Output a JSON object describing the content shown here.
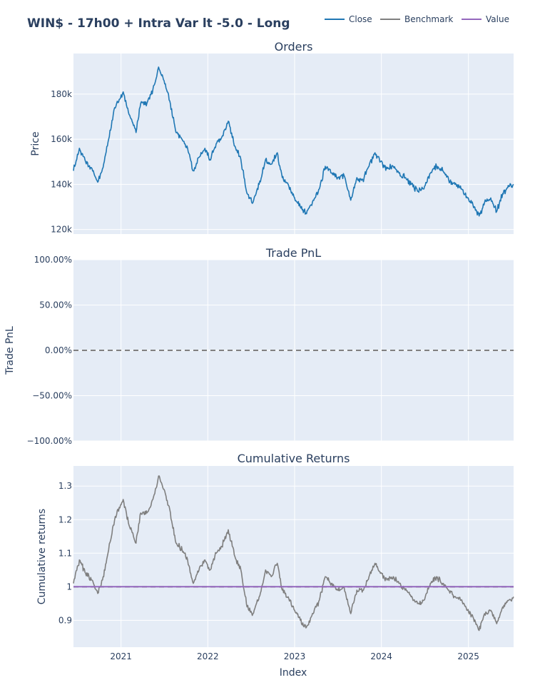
{
  "chart_data": {
    "title": "WIN$ - 17h00 + Intra Var lt -5.0 - Long",
    "legend": {
      "placement": "top-right",
      "entries": [
        {
          "name": "Close",
          "color": "#1f77b4"
        },
        {
          "name": "Benchmark",
          "color": "#7f7f7f"
        },
        {
          "name": "Value",
          "color": "#9467bd"
        }
      ]
    },
    "xlabel": "Index",
    "x_range": [
      "2020-06-15",
      "2025-07-10"
    ],
    "x_ticks": [
      "2021",
      "2022",
      "2023",
      "2024",
      "2025"
    ],
    "panels": [
      {
        "type": "line",
        "title": "Orders",
        "ylabel": "Price",
        "ylim": [
          118000,
          198000
        ],
        "y_ticks": [
          120000,
          140000,
          160000,
          180000
        ],
        "y_tick_labels": [
          "120k",
          "140k",
          "160k",
          "180k"
        ],
        "grid": true,
        "series": [
          {
            "name": "Close",
            "color": "#1f77b4",
            "x": [
              "2020-06-15",
              "2020-07-10",
              "2020-08-05",
              "2020-09-01",
              "2020-09-25",
              "2020-10-15",
              "2020-11-10",
              "2020-12-05",
              "2021-01-10",
              "2021-02-01",
              "2021-03-05",
              "2021-03-25",
              "2021-04-20",
              "2021-05-15",
              "2021-06-08",
              "2021-07-01",
              "2021-07-25",
              "2021-08-20",
              "2021-09-15",
              "2021-10-08",
              "2021-11-01",
              "2021-11-25",
              "2021-12-20",
              "2022-01-10",
              "2022-02-05",
              "2022-03-01",
              "2022-03-28",
              "2022-04-25",
              "2022-05-20",
              "2022-06-15",
              "2022-07-10",
              "2022-08-05",
              "2022-09-01",
              "2022-09-25",
              "2022-10-20",
              "2022-11-10",
              "2022-12-05",
              "2023-01-01",
              "2023-01-25",
              "2023-02-20",
              "2023-03-20",
              "2023-04-15",
              "2023-05-10",
              "2023-06-05",
              "2023-07-01",
              "2023-07-28",
              "2023-08-25",
              "2023-09-20",
              "2023-10-15",
              "2023-11-10",
              "2023-12-05",
              "2023-12-28",
              "2024-01-25",
              "2024-02-20",
              "2024-03-15",
              "2024-04-10",
              "2024-05-05",
              "2024-06-01",
              "2024-06-28",
              "2024-07-25",
              "2024-08-20",
              "2024-09-15",
              "2024-10-10",
              "2024-11-05",
              "2024-12-01",
              "2024-12-28",
              "2025-01-20",
              "2025-02-15",
              "2025-03-10",
              "2025-04-05",
              "2025-04-30",
              "2025-05-25",
              "2025-06-20",
              "2025-07-10"
            ],
            "y": [
              146000,
              156000,
              150000,
              147000,
              141000,
              147000,
              160000,
              174000,
              181000,
              172000,
              163000,
              176000,
              176000,
              182000,
              192000,
              186000,
              177000,
              163000,
              160000,
              156000,
              146000,
              152000,
              156000,
              151000,
              158000,
              161000,
              168000,
              157000,
              151000,
              136000,
              132000,
              140000,
              151000,
              149000,
              154000,
              143000,
              140000,
              134000,
              130000,
              127000,
              133000,
              138000,
              148000,
              145000,
              143000,
              144000,
              133000,
              143000,
              142000,
              148000,
              154000,
              150000,
              147000,
              148000,
              145000,
              143000,
              140000,
              137000,
              138000,
              145000,
              148000,
              146000,
              142000,
              140000,
              138000,
              134000,
              131000,
              126000,
              132000,
              134000,
              128000,
              136000,
              139000,
              140000
            ]
          }
        ]
      },
      {
        "type": "line",
        "title": "Trade PnL",
        "ylabel": "Trade PnL",
        "ylim": [
          -1.0,
          1.0
        ],
        "y_ticks": [
          -1.0,
          -0.5,
          0,
          0.5,
          1.0
        ],
        "y_tick_labels": [
          "−100.00%",
          "−50.00%",
          "0.00%",
          "50.00%",
          "100.00%"
        ],
        "grid": true,
        "reference_line": {
          "y": 0,
          "color": "#808080",
          "dash": "dashed"
        },
        "series": []
      },
      {
        "type": "line",
        "title": "Cumulative Returns",
        "ylabel": "Cumulative returns",
        "ylim": [
          0.82,
          1.36
        ],
        "y_ticks": [
          0.9,
          1,
          1.1,
          1.2,
          1.3
        ],
        "y_tick_labels": [
          "0.9",
          "1",
          "1.1",
          "1.2",
          "1.3"
        ],
        "grid": true,
        "reference_line": {
          "y": 1,
          "color": "#808080",
          "dash": "dashed"
        },
        "series": [
          {
            "name": "Benchmark",
            "color": "#7f7f7f",
            "x": [
              "2020-06-15",
              "2020-07-10",
              "2020-08-05",
              "2020-09-01",
              "2020-09-25",
              "2020-10-15",
              "2020-11-10",
              "2020-12-05",
              "2021-01-10",
              "2021-02-01",
              "2021-03-05",
              "2021-03-25",
              "2021-04-20",
              "2021-05-15",
              "2021-06-08",
              "2021-07-01",
              "2021-07-25",
              "2021-08-20",
              "2021-09-15",
              "2021-10-08",
              "2021-11-01",
              "2021-11-25",
              "2021-12-20",
              "2022-01-10",
              "2022-02-05",
              "2022-03-01",
              "2022-03-28",
              "2022-04-25",
              "2022-05-20",
              "2022-06-15",
              "2022-07-10",
              "2022-08-05",
              "2022-09-01",
              "2022-09-25",
              "2022-10-20",
              "2022-11-10",
              "2022-12-05",
              "2023-01-01",
              "2023-01-25",
              "2023-02-20",
              "2023-03-20",
              "2023-04-15",
              "2023-05-10",
              "2023-06-05",
              "2023-07-01",
              "2023-07-28",
              "2023-08-25",
              "2023-09-20",
              "2023-10-15",
              "2023-11-10",
              "2023-12-05",
              "2023-12-28",
              "2024-01-25",
              "2024-02-20",
              "2024-03-15",
              "2024-04-10",
              "2024-05-05",
              "2024-06-01",
              "2024-06-28",
              "2024-07-25",
              "2024-08-20",
              "2024-09-15",
              "2024-10-10",
              "2024-11-05",
              "2024-12-01",
              "2024-12-28",
              "2025-01-20",
              "2025-02-15",
              "2025-03-10",
              "2025-04-05",
              "2025-04-30",
              "2025-05-25",
              "2025-06-20",
              "2025-07-10"
            ],
            "y": [
              1.01,
              1.08,
              1.04,
              1.02,
              0.98,
              1.02,
              1.11,
              1.2,
              1.26,
              1.19,
              1.13,
              1.22,
              1.22,
              1.26,
              1.33,
              1.29,
              1.23,
              1.13,
              1.11,
              1.08,
              1.01,
              1.05,
              1.08,
              1.05,
              1.1,
              1.12,
              1.17,
              1.09,
              1.05,
              0.94,
              0.92,
              0.97,
              1.05,
              1.03,
              1.07,
              0.99,
              0.97,
              0.93,
              0.9,
              0.88,
              0.92,
              0.96,
              1.03,
              1.01,
              0.99,
              1.0,
              0.92,
              0.99,
              0.99,
              1.03,
              1.07,
              1.04,
              1.02,
              1.03,
              1.01,
              0.99,
              0.97,
              0.95,
              0.96,
              1.01,
              1.03,
              1.01,
              0.99,
              0.97,
              0.96,
              0.93,
              0.91,
              0.87,
              0.92,
              0.93,
              0.89,
              0.94,
              0.96,
              0.97
            ]
          },
          {
            "name": "Value",
            "color": "#9467bd",
            "x": [
              "2020-06-15",
              "2025-07-10"
            ],
            "y": [
              1,
              1
            ]
          }
        ]
      }
    ]
  }
}
